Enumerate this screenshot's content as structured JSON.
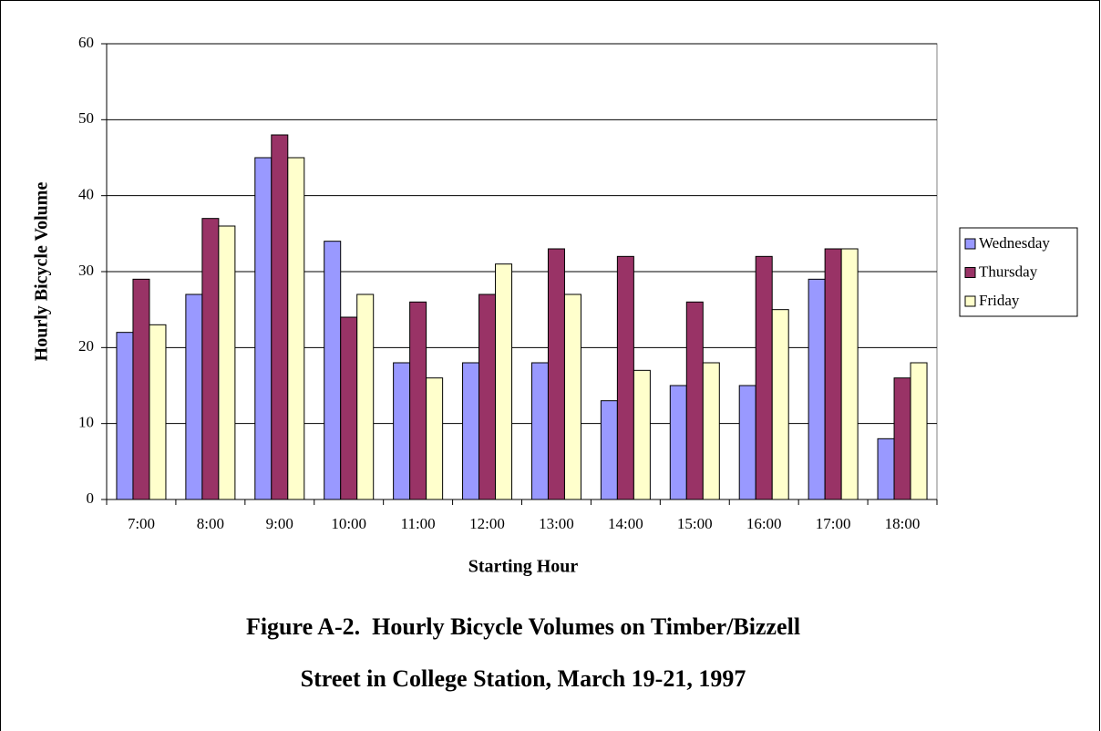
{
  "chart_data": {
    "type": "bar",
    "xlabel": "Starting Hour",
    "ylabel": "Hourly Bicycle Volume",
    "caption": [
      "Figure A-2.  Hourly Bicycle Volumes on Timber/Bizzell",
      "Street in College Station, March 19-21, 1997"
    ],
    "categories": [
      "7:00",
      "8:00",
      "9:00",
      "10:00",
      "11:00",
      "12:00",
      "13:00",
      "14:00",
      "15:00",
      "16:00",
      "17:00",
      "18:00"
    ],
    "series": [
      {
        "name": "Wednesday",
        "color": "#9999ff",
        "values": [
          22,
          27,
          45,
          34,
          18,
          18,
          18,
          13,
          15,
          15,
          29,
          8
        ]
      },
      {
        "name": "Thursday",
        "color": "#993366",
        "values": [
          29,
          37,
          48,
          24,
          26,
          27,
          33,
          32,
          26,
          32,
          33,
          16
        ]
      },
      {
        "name": "Friday",
        "color": "#ffffcc",
        "values": [
          23,
          36,
          45,
          27,
          16,
          31,
          27,
          17,
          18,
          25,
          33,
          18
        ]
      }
    ],
    "ylim": [
      0,
      60
    ],
    "yticks": [
      0,
      10,
      20,
      30,
      40,
      50,
      60
    ],
    "grid": true,
    "legend": "right"
  }
}
